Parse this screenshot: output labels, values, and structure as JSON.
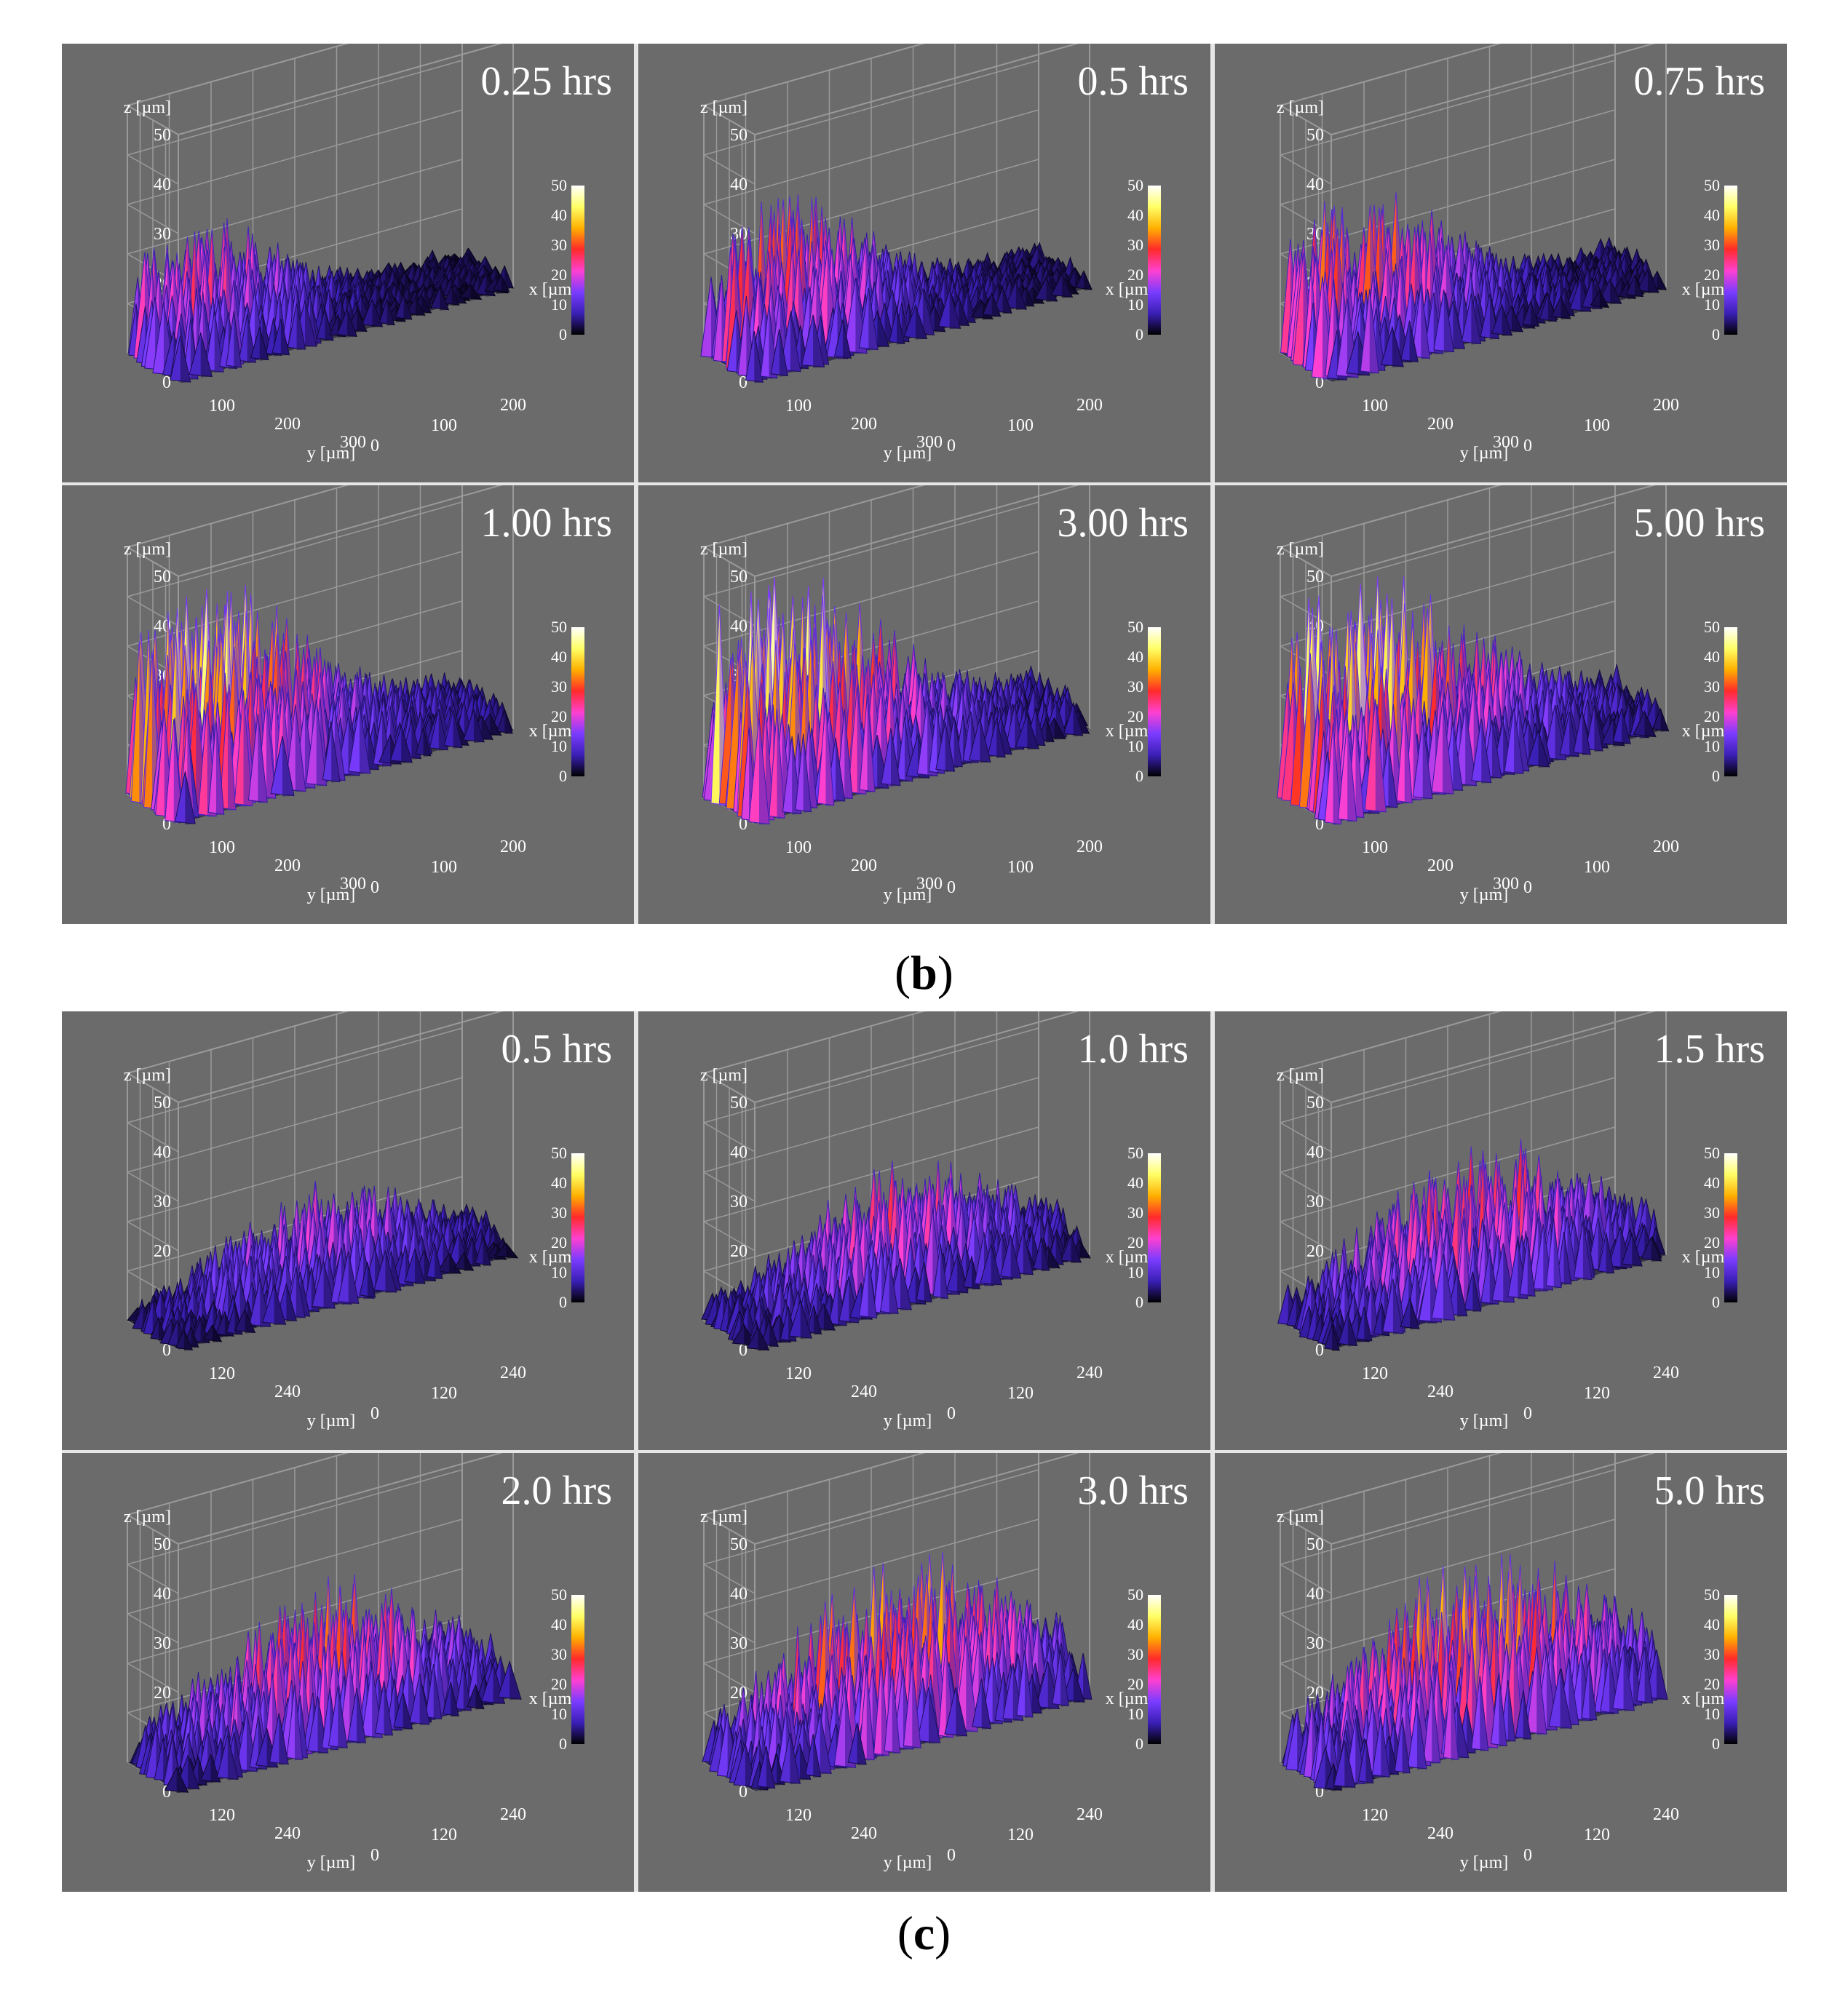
{
  "caption_b_letter": "b",
  "caption_c_letter": "c",
  "axis_labels": {
    "z": "z [µm]",
    "x": "x [µm]",
    "y": "y [µm]"
  },
  "z_ticks": [
    "0",
    "10",
    "20",
    "30",
    "40",
    "50"
  ],
  "colorbar_ticks": [
    "0",
    "10",
    "20",
    "30",
    "40",
    "50"
  ],
  "colors": {
    "background": "#6b6b6b",
    "grid": "#9a9a9a",
    "panel_divider": "#e6e6e6"
  },
  "chart_data": [
    {
      "group": "b",
      "type": "surface3d",
      "zlim": [
        0,
        50
      ],
      "colorbar_range": [
        0,
        50
      ],
      "colormap": [
        "#000000",
        "#3a1fb5",
        "#7a3cff",
        "#ff40d0",
        "#ff2a2a",
        "#ffb000",
        "#ffff66",
        "#ffffff"
      ],
      "y_ticks": [
        "100",
        "200",
        "300"
      ],
      "x_ticks": [
        "0",
        "100",
        "200"
      ],
      "panels": [
        {
          "title": "0.25 hrs",
          "peak_z": 27,
          "spread": 0.35
        },
        {
          "title": "0.5 hrs",
          "peak_z": 32,
          "spread": 0.5
        },
        {
          "title": "0.75 hrs",
          "peak_z": 33,
          "spread": 0.6
        },
        {
          "title": "1.00 hrs",
          "peak_z": 44,
          "spread": 0.7
        },
        {
          "title": "3.00 hrs",
          "peak_z": 45,
          "spread": 0.8
        },
        {
          "title": "5.00 hrs",
          "peak_z": 45,
          "spread": 0.9
        }
      ]
    },
    {
      "group": "c",
      "type": "surface3d",
      "zlim": [
        0,
        50
      ],
      "colorbar_range": [
        0,
        50
      ],
      "colormap": [
        "#000000",
        "#3a1fb5",
        "#7a3cff",
        "#ff40d0",
        "#ff2a2a",
        "#ffb000",
        "#ffff66",
        "#ffffff"
      ],
      "y_ticks": [
        "120",
        "240"
      ],
      "x_ticks": [
        "0",
        "120",
        "240"
      ],
      "panels": [
        {
          "title": "0.5 hrs",
          "peak_z": 22,
          "spread": 0.4
        },
        {
          "title": "1.0 hrs",
          "peak_z": 26,
          "spread": 0.5
        },
        {
          "title": "1.5 hrs",
          "peak_z": 30,
          "spread": 0.6
        },
        {
          "title": "2.0 hrs",
          "peak_z": 31,
          "spread": 0.65
        },
        {
          "title": "3.0 hrs",
          "peak_z": 36,
          "spread": 0.75
        },
        {
          "title": "5.0 hrs",
          "peak_z": 37,
          "spread": 0.85
        }
      ]
    }
  ]
}
